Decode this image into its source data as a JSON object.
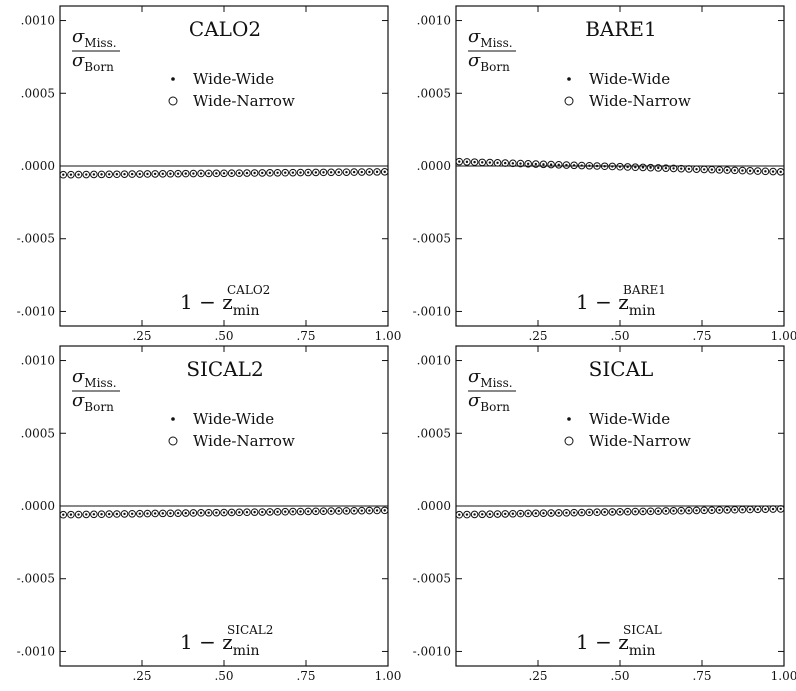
{
  "chart_data": [
    {
      "type": "scatter",
      "title": "CALO2",
      "ylabel_num": "σ",
      "ylabel_num_sub": "Miss.",
      "ylabel_den": "σ",
      "ylabel_den_sub": "Born",
      "xlabel_main": "1 − z",
      "xlabel_sub": "min",
      "xlabel_sup": "CALO2",
      "xlim": [
        0.0,
        1.0
      ],
      "ylim": [
        -0.0011,
        0.0011
      ],
      "xticks": [
        0.25,
        0.5,
        0.75,
        1.0
      ],
      "xtick_labels": [
        ".25",
        ".50",
        ".75",
        "1.00"
      ],
      "yticks": [
        0.001,
        0.0005,
        0.0,
        -0.0005,
        -0.001
      ],
      "ytick_labels": [
        ".0010",
        ".0005",
        ".0000",
        "-.0005",
        "-.0010"
      ],
      "legend_position": "top-center",
      "series": [
        {
          "name": "Wide-Wide",
          "marker": "dot",
          "y_start": -6e-05,
          "y_end": -4e-05
        },
        {
          "name": "Wide-Narrow",
          "marker": "circle",
          "y_start": -6e-05,
          "y_end": -4e-05
        }
      ]
    },
    {
      "type": "scatter",
      "title": "BARE1",
      "ylabel_num": "σ",
      "ylabel_num_sub": "Miss.",
      "ylabel_den": "σ",
      "ylabel_den_sub": "Born",
      "xlabel_main": "1 − z",
      "xlabel_sub": "min",
      "xlabel_sup": "BARE1",
      "xlim": [
        0.0,
        1.0
      ],
      "ylim": [
        -0.0011,
        0.0011
      ],
      "xticks": [
        0.25,
        0.5,
        0.75,
        1.0
      ],
      "xtick_labels": [
        ".25",
        ".50",
        ".75",
        "1.00"
      ],
      "yticks": [
        0.001,
        0.0005,
        0.0,
        -0.0005,
        -0.001
      ],
      "ytick_labels": [
        ".0010",
        ".0005",
        ".0000",
        "-.0005",
        "-.0010"
      ],
      "legend_position": "top-center",
      "series": [
        {
          "name": "Wide-Wide",
          "marker": "dot",
          "y_start": 3e-05,
          "y_end": -4e-05
        },
        {
          "name": "Wide-Narrow",
          "marker": "circle",
          "y_start": 3e-05,
          "y_end": -4e-05
        }
      ]
    },
    {
      "type": "scatter",
      "title": "SICAL2",
      "ylabel_num": "σ",
      "ylabel_num_sub": "Miss.",
      "ylabel_den": "σ",
      "ylabel_den_sub": "Born",
      "xlabel_main": "1 − z",
      "xlabel_sub": "min",
      "xlabel_sup": "SICAL2",
      "xlim": [
        0.0,
        1.0
      ],
      "ylim": [
        -0.0011,
        0.0011
      ],
      "xticks": [
        0.25,
        0.5,
        0.75,
        1.0
      ],
      "xtick_labels": [
        ".25",
        ".50",
        ".75",
        "1.00"
      ],
      "yticks": [
        0.001,
        0.0005,
        0.0,
        -0.0005,
        -0.001
      ],
      "ytick_labels": [
        ".0010",
        ".0005",
        ".0000",
        "-.0005",
        "-.0010"
      ],
      "legend_position": "top-center",
      "series": [
        {
          "name": "Wide-Wide",
          "marker": "dot",
          "y_start": -6e-05,
          "y_end": -3e-05
        },
        {
          "name": "Wide-Narrow",
          "marker": "circle",
          "y_start": -6e-05,
          "y_end": -3e-05
        }
      ]
    },
    {
      "type": "scatter",
      "title": "SICAL",
      "ylabel_num": "σ",
      "ylabel_num_sub": "Miss.",
      "ylabel_den": "σ",
      "ylabel_den_sub": "Born",
      "xlabel_main": "1 − z",
      "xlabel_sub": "min",
      "xlabel_sup": "SICAL",
      "xlim": [
        0.0,
        1.0
      ],
      "ylim": [
        -0.0011,
        0.0011
      ],
      "xticks": [
        0.25,
        0.5,
        0.75,
        1.0
      ],
      "xtick_labels": [
        ".25",
        ".50",
        ".75",
        "1.00"
      ],
      "yticks": [
        0.001,
        0.0005,
        0.0,
        -0.0005,
        -0.001
      ],
      "ytick_labels": [
        ".0010",
        ".0005",
        ".0000",
        "-.0005",
        "-.0010"
      ],
      "legend_position": "top-center",
      "series": [
        {
          "name": "Wide-Wide",
          "marker": "dot",
          "y_start": -6e-05,
          "y_end": -2e-05
        },
        {
          "name": "Wide-Narrow",
          "marker": "circle",
          "y_start": -6e-05,
          "y_end": -2e-05
        }
      ]
    }
  ]
}
